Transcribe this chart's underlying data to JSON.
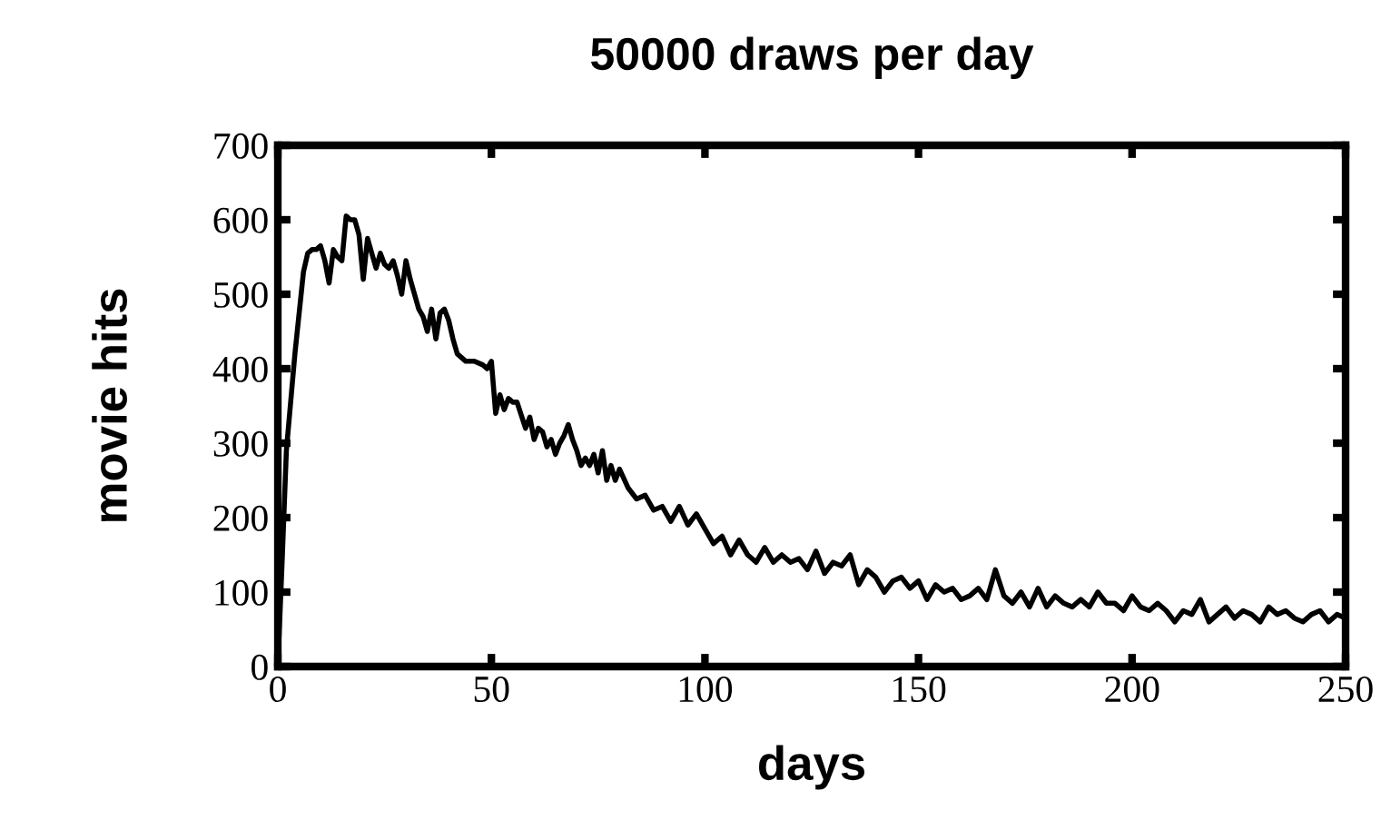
{
  "chart_data": {
    "type": "line",
    "title": "50000 draws per day",
    "xlabel": "days",
    "ylabel": "movie hits",
    "x": [
      0,
      1,
      2,
      4,
      6,
      7,
      8,
      9,
      10,
      11,
      12,
      13,
      14,
      15,
      16,
      17,
      18,
      19,
      20,
      21,
      22,
      23,
      24,
      25,
      26,
      27,
      28,
      29,
      30,
      31,
      32,
      33,
      34,
      35,
      36,
      37,
      38,
      39,
      40,
      41,
      42,
      44,
      46,
      48,
      49,
      50,
      51,
      52,
      53,
      54,
      55,
      56,
      58,
      59,
      60,
      61,
      62,
      63,
      64,
      65,
      66,
      67,
      68,
      69,
      70,
      71,
      72,
      73,
      74,
      75,
      76,
      77,
      78,
      79,
      80,
      82,
      84,
      86,
      88,
      90,
      92,
      94,
      96,
      98,
      100,
      102,
      104,
      106,
      108,
      110,
      112,
      114,
      116,
      118,
      120,
      122,
      124,
      126,
      128,
      130,
      132,
      134,
      136,
      138,
      140,
      142,
      144,
      146,
      148,
      150,
      152,
      154,
      156,
      158,
      160,
      162,
      164,
      166,
      168,
      170,
      172,
      174,
      176,
      178,
      180,
      182,
      184,
      186,
      188,
      190,
      192,
      194,
      196,
      198,
      200,
      202,
      204,
      206,
      208,
      210,
      212,
      214,
      216,
      218,
      220,
      222,
      224,
      226,
      228,
      230,
      232,
      234,
      236,
      238,
      240,
      242,
      244,
      246,
      248,
      250
    ],
    "values": [
      0,
      140,
      290,
      420,
      530,
      555,
      560,
      560,
      565,
      545,
      515,
      560,
      550,
      545,
      605,
      600,
      600,
      580,
      520,
      575,
      555,
      535,
      555,
      540,
      535,
      545,
      525,
      500,
      545,
      520,
      500,
      480,
      470,
      450,
      480,
      440,
      475,
      480,
      465,
      440,
      420,
      410,
      410,
      405,
      400,
      410,
      340,
      365,
      345,
      360,
      355,
      355,
      320,
      335,
      305,
      320,
      315,
      295,
      305,
      285,
      300,
      310,
      325,
      305,
      290,
      270,
      280,
      270,
      285,
      260,
      290,
      250,
      270,
      250,
      265,
      240,
      225,
      230,
      210,
      215,
      195,
      215,
      190,
      205,
      185,
      165,
      175,
      150,
      170,
      150,
      140,
      160,
      140,
      150,
      140,
      145,
      130,
      155,
      125,
      140,
      135,
      150,
      110,
      130,
      120,
      100,
      115,
      120,
      105,
      115,
      90,
      110,
      100,
      105,
      90,
      95,
      105,
      90,
      130,
      95,
      85,
      100,
      80,
      105,
      80,
      95,
      85,
      80,
      90,
      80,
      100,
      85,
      85,
      75,
      95,
      80,
      75,
      85,
      75,
      60,
      75,
      70,
      90,
      60,
      70,
      80,
      65,
      75,
      70,
      60,
      80,
      70,
      75,
      65,
      60,
      70,
      75,
      60,
      70,
      65
    ],
    "color": "#000000",
    "xlim": [
      0,
      250
    ],
    "xticks": [
      0,
      50,
      100,
      150,
      200,
      250
    ],
    "ylim": [
      0,
      700
    ],
    "yticks": [
      0,
      100,
      200,
      300,
      400,
      500,
      600,
      700
    ],
    "grid": false,
    "legend": false,
    "marker": "none",
    "line_style": "solid"
  }
}
